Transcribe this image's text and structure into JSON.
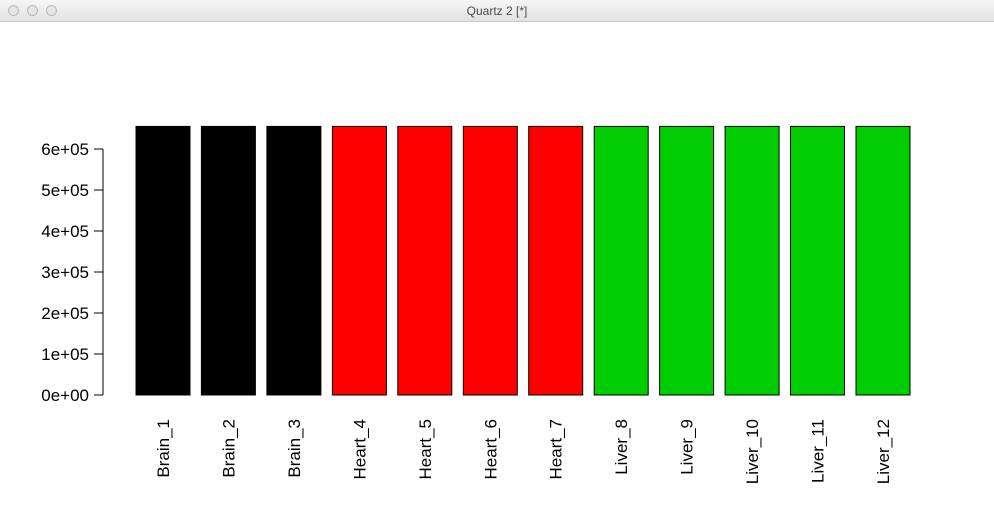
{
  "window": {
    "title": "Quartz 2 [*]"
  },
  "chart_data": {
    "type": "bar",
    "title": "",
    "xlabel": "",
    "ylabel": "",
    "ylim": [
      0,
      650000
    ],
    "y_ticks": [
      0,
      100000,
      200000,
      300000,
      400000,
      500000,
      600000
    ],
    "y_tick_labels": [
      "0e+00",
      "1e+05",
      "2e+05",
      "3e+05",
      "4e+05",
      "5e+05",
      "6e+05"
    ],
    "categories": [
      "Brain_1",
      "Brain_2",
      "Brain_3",
      "Heart_4",
      "Heart_5",
      "Heart_6",
      "Heart_7",
      "Liver_8",
      "Liver_9",
      "Liver_10",
      "Liver_11",
      "Liver_12"
    ],
    "values": [
      655000,
      655000,
      655000,
      655000,
      655000,
      655000,
      655000,
      655000,
      655000,
      655000,
      655000,
      655000
    ],
    "colors": [
      "#000000",
      "#000000",
      "#000000",
      "#ff0000",
      "#ff0000",
      "#ff0000",
      "#ff0000",
      "#00cd00",
      "#00cd00",
      "#00cd00",
      "#00cd00",
      "#00cd00"
    ],
    "grid": false,
    "legend": "none"
  }
}
